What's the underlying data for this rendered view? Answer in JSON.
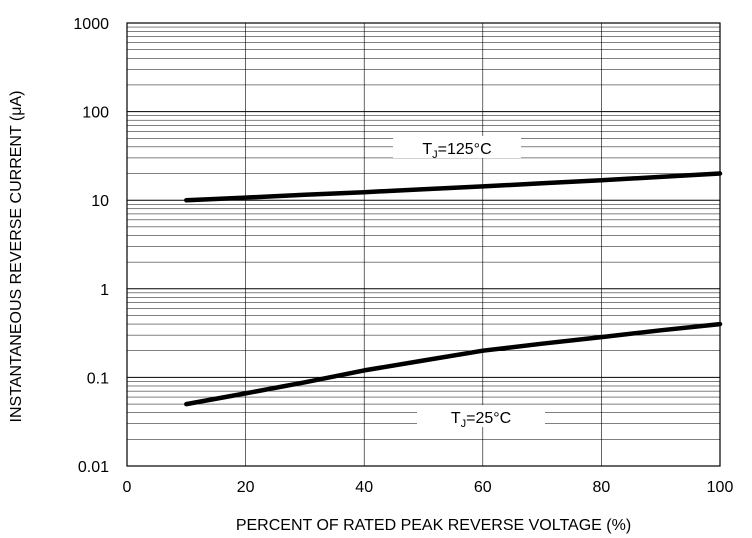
{
  "chart_data": {
    "type": "line",
    "title": "",
    "xlabel": "PERCENT OF RATED PEAK REVERSE VOLTAGE (%)",
    "ylabel": "INSTANTANEOUS REVERSE CURRENT (μA)",
    "xlim": [
      0,
      100
    ],
    "ylim": [
      0.01,
      1000
    ],
    "yscale": "log",
    "grid": true,
    "x_ticks": [
      "0",
      "20",
      "40",
      "60",
      "80",
      "100"
    ],
    "y_ticks": [
      "0.01",
      "0.1",
      "1",
      "10",
      "100",
      "1000"
    ],
    "series": [
      {
        "name": "T_J=125°C",
        "label_main": "T",
        "label_sub": "J",
        "label_rest": "=125°C",
        "x": [
          10,
          20,
          30,
          40,
          50,
          60,
          70,
          80,
          90,
          100
        ],
        "y": [
          10,
          10.7,
          11.5,
          12.3,
          13.3,
          14.3,
          15.5,
          16.8,
          18.3,
          20
        ]
      },
      {
        "name": "T_J=25°C",
        "label_main": "T",
        "label_sub": "J",
        "label_rest": "=25°C",
        "x": [
          10,
          20,
          30,
          40,
          50,
          60,
          70,
          80,
          90,
          100
        ],
        "y": [
          0.05,
          0.066,
          0.088,
          0.12,
          0.155,
          0.2,
          0.24,
          0.285,
          0.34,
          0.4
        ]
      }
    ],
    "colors": {
      "line": "#000000",
      "grid": "#000000",
      "background": "#ffffff"
    }
  }
}
